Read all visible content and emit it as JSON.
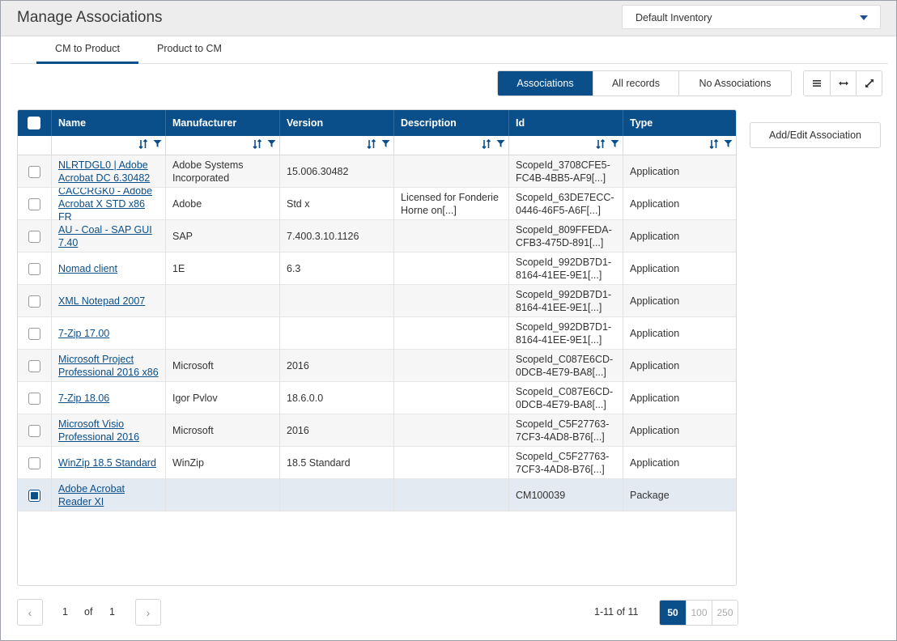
{
  "header": {
    "title": "Manage Associations",
    "inventory": "Default Inventory"
  },
  "tabs": [
    {
      "label": "CM to Product",
      "active": true
    },
    {
      "label": "Product to CM",
      "active": false
    }
  ],
  "filter_buttons": [
    {
      "label": "Associations",
      "active": true
    },
    {
      "label": "All records",
      "active": false
    },
    {
      "label": "No Associations",
      "active": false
    }
  ],
  "view_icons": [
    "list-icon",
    "fit-width-icon",
    "expand-icon"
  ],
  "add_button": "Add/Edit Association",
  "columns": [
    "Name",
    "Manufacturer",
    "Version",
    "Description",
    "Id",
    "Type"
  ],
  "rows": [
    {
      "name": "NLRTDGL0 | Adobe Acrobat DC 6.30482",
      "manufacturer": "Adobe Systems Incorporated",
      "version": "15.006.30482",
      "description": "",
      "id": "ScopeId_3708CFE5-FC4B-4BB5-AF9[...]",
      "type": "Application",
      "checked": false
    },
    {
      "name": "CACCRGK0 - Adobe Acrobat X STD x86 FR",
      "manufacturer": "Adobe",
      "version": "Std x",
      "description": "Licensed for Fonderie Horne on[...]",
      "id": "ScopeId_63DE7ECC-0446-46F5-A6F[...]",
      "type": "Application",
      "checked": false
    },
    {
      "name": "AU - Coal - SAP GUI 7.40",
      "manufacturer": "SAP",
      "version": "7.400.3.10.1126",
      "description": "",
      "id": "ScopeId_809FFEDA-CFB3-475D-891[...]",
      "type": "Application",
      "checked": false
    },
    {
      "name": "Nomad client",
      "manufacturer": "1E",
      "version": "6.3",
      "description": "",
      "id": "ScopeId_992DB7D1-8164-41EE-9E1[...]",
      "type": "Application",
      "checked": false
    },
    {
      "name": "XML Notepad 2007",
      "manufacturer": "",
      "version": "",
      "description": "",
      "id": "ScopeId_992DB7D1-8164-41EE-9E1[...]",
      "type": "Application",
      "checked": false
    },
    {
      "name": "7-Zip 17.00",
      "manufacturer": "",
      "version": "",
      "description": "",
      "id": "ScopeId_992DB7D1-8164-41EE-9E1[...]",
      "type": "Application",
      "checked": false
    },
    {
      "name": "Microsoft Project Professional 2016 x86",
      "manufacturer": "Microsoft",
      "version": "2016",
      "description": "",
      "id": "ScopeId_C087E6CD-0DCB-4E79-BA8[...]",
      "type": "Application",
      "checked": false
    },
    {
      "name": "7-Zip 18.06",
      "manufacturer": "Igor Pvlov",
      "version": "18.6.0.0",
      "description": "",
      "id": "ScopeId_C087E6CD-0DCB-4E79-BA8[...]",
      "type": "Application",
      "checked": false
    },
    {
      "name": "Microsoft Visio Professional 2016",
      "manufacturer": "Microsoft",
      "version": "2016",
      "description": "",
      "id": "ScopeId_C5F27763-7CF3-4AD8-B76[...]",
      "type": "Application",
      "checked": false
    },
    {
      "name": "WinZip 18.5 Standard",
      "manufacturer": "WinZip",
      "version": "18.5 Standard",
      "description": "",
      "id": "ScopeId_C5F27763-7CF3-4AD8-B76[...]",
      "type": "Application",
      "checked": false
    },
    {
      "name": "Adobe Acrobat Reader XI",
      "manufacturer": "",
      "version": "",
      "description": "",
      "id": "CM100039",
      "type": "Package",
      "checked": true
    }
  ],
  "pagination": {
    "current": "1",
    "of_label": "of",
    "total": "1",
    "range": "1-11 of 11",
    "page_sizes": [
      "50",
      "100",
      "250"
    ],
    "active_size": "50"
  },
  "colors": {
    "primary": "#0b4f8a",
    "link": "#0b4f8a",
    "header_bg": "#ededed"
  }
}
